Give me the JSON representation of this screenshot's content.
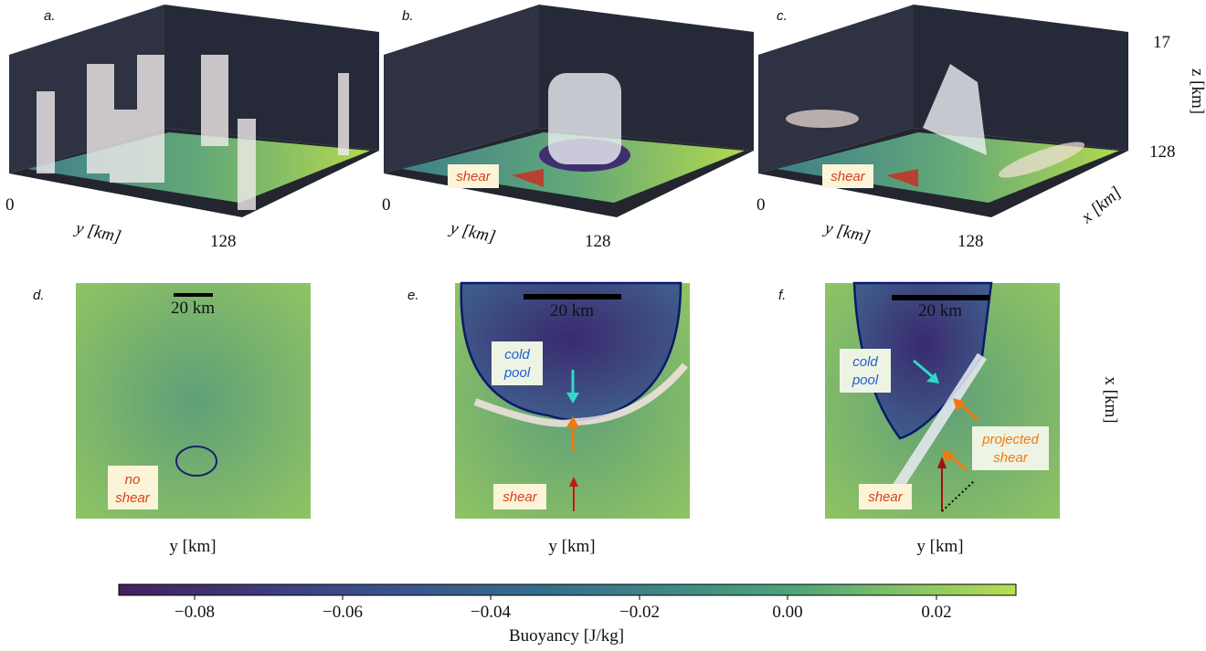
{
  "panels_3d": [
    {
      "label": "a.",
      "y_start": "0",
      "y_label": "y [km]",
      "y_end": "128"
    },
    {
      "label": "b.",
      "y_start": "0",
      "y_label": "y [km]",
      "y_end": "128",
      "annotation": "shear"
    },
    {
      "label": "c.",
      "y_start": "0",
      "y_label": "y [km]",
      "y_end": "128",
      "annotation": "shear",
      "z_top": "17",
      "z_label": "z [km]",
      "x_start": "128",
      "x_label": "x [km]"
    }
  ],
  "panels_2d": [
    {
      "label": "d.",
      "scale_bar": "20 km",
      "x_label": "y [km]",
      "annotation": [
        "no",
        "shear"
      ]
    },
    {
      "label": "e.",
      "scale_bar": "20 km",
      "x_label": "y [km]",
      "cold_pool": [
        "cold",
        "pool"
      ],
      "annotation": "shear"
    },
    {
      "label": "f.",
      "scale_bar": "20 km",
      "x_label": "y [km]",
      "cold_pool": [
        "cold",
        "pool"
      ],
      "annotation": "shear",
      "projected": [
        "projected",
        "shear"
      ]
    }
  ],
  "right_label": "x [km]",
  "colorbar": {
    "ticks": [
      "−0.08",
      "−0.06",
      "−0.04",
      "−0.02",
      "0.00",
      "0.02"
    ],
    "label": "Buoyancy [J/kg]"
  }
}
